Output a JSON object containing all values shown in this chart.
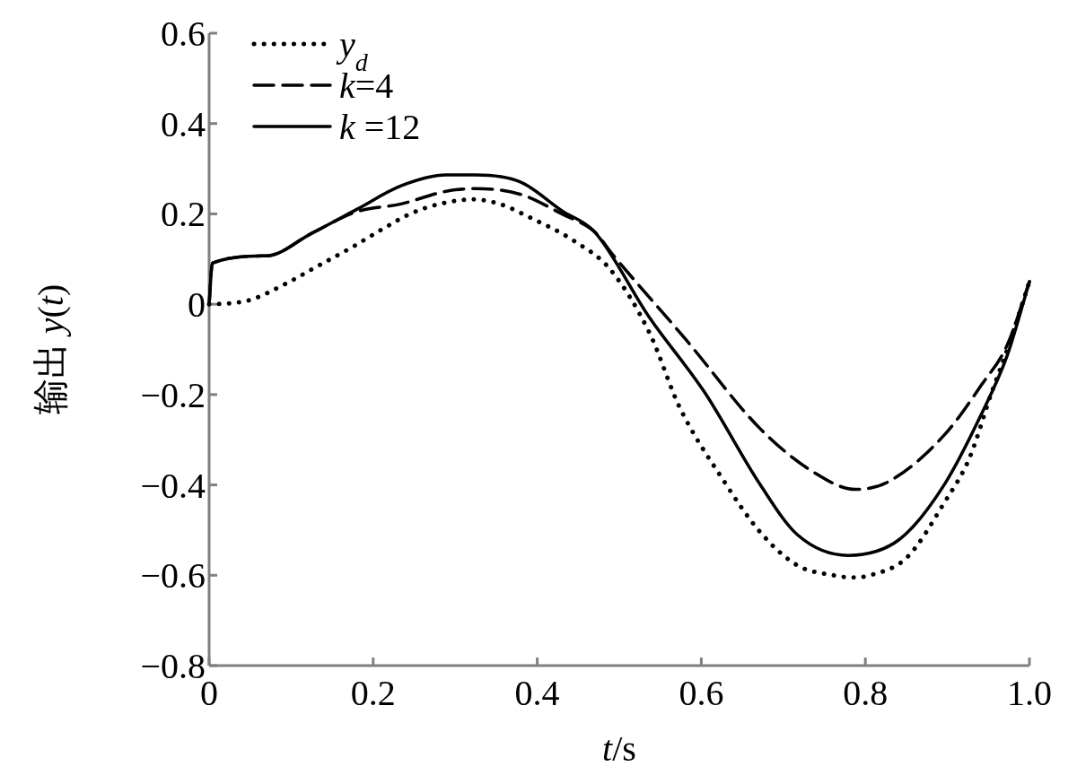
{
  "chart_data": {
    "type": "line",
    "xlabel": "*t*/s",
    "ylabel": "输出 *y*(*t*)",
    "xlim": [
      0,
      1
    ],
    "ylim": [
      -0.8,
      0.6
    ],
    "xticks": [
      0,
      0.2,
      0.4,
      0.6,
      0.8,
      {
        "value": 1,
        "label": "1.0"
      }
    ],
    "yticks": [
      {
        "value": -0.8,
        "label": "−0.8"
      },
      {
        "value": -0.6,
        "label": "−0.6"
      },
      {
        "value": -0.4,
        "label": "−0.4"
      },
      {
        "value": -0.2,
        "label": "−0.2"
      },
      0,
      0.2,
      0.4,
      0.6
    ],
    "legend": "top left",
    "series": [
      {
        "name": "*y*$_{d}$",
        "color": "#000000",
        "line_style": "dotted",
        "x": [
          0,
          0.026,
          0.051,
          0.092,
          0.131,
          0.175,
          0.212,
          0.245,
          0.281,
          0.322,
          0.354,
          0.39,
          0.445,
          0.489,
          0.537,
          0.573,
          0.627,
          0.672,
          0.717,
          0.761,
          0.785,
          0.806,
          0.851,
          0.896,
          0.927,
          0.954,
          0.975,
          1.0
        ],
        "values": [
          0,
          0.002,
          0.01,
          0.044,
          0.083,
          0.127,
          0.167,
          0.2,
          0.222,
          0.232,
          0.222,
          0.193,
          0.14,
          0.077,
          -0.064,
          -0.226,
          -0.39,
          -0.505,
          -0.578,
          -0.6,
          -0.605,
          -0.6,
          -0.56,
          -0.44,
          -0.34,
          -0.195,
          -0.09,
          0.05
        ]
      },
      {
        "name": "*k*=4",
        "color": "#000000",
        "line_style": "dashed",
        "x": [
          0,
          0.004,
          0.07,
          0.125,
          0.18,
          0.234,
          0.289,
          0.325,
          0.38,
          0.43,
          0.47,
          0.492,
          0.582,
          0.672,
          0.738,
          0.788,
          0.828,
          0.896,
          0.941,
          0.973,
          1.0
        ],
        "values": [
          0,
          0.091,
          0.107,
          0.157,
          0.205,
          0.222,
          0.25,
          0.256,
          0.243,
          0.2,
          0.16,
          0.11,
          -0.08,
          -0.276,
          -0.373,
          -0.41,
          -0.393,
          -0.29,
          -0.18,
          -0.09,
          0.05
        ]
      },
      {
        "name": "*k* =12",
        "color": "#000000",
        "line_style": "solid",
        "x": [
          0,
          0.004,
          0.07,
          0.125,
          0.18,
          0.234,
          0.289,
          0.325,
          0.38,
          0.43,
          0.47,
          0.537,
          0.604,
          0.672,
          0.717,
          0.779,
          0.842,
          0.896,
          0.941,
          0.973,
          1.0
        ],
        "values": [
          0,
          0.091,
          0.107,
          0.157,
          0.21,
          0.262,
          0.286,
          0.286,
          0.27,
          0.207,
          0.16,
          -0.03,
          -0.195,
          -0.4,
          -0.51,
          -0.556,
          -0.52,
          -0.4,
          -0.245,
          -0.113,
          0.05
        ]
      }
    ]
  }
}
